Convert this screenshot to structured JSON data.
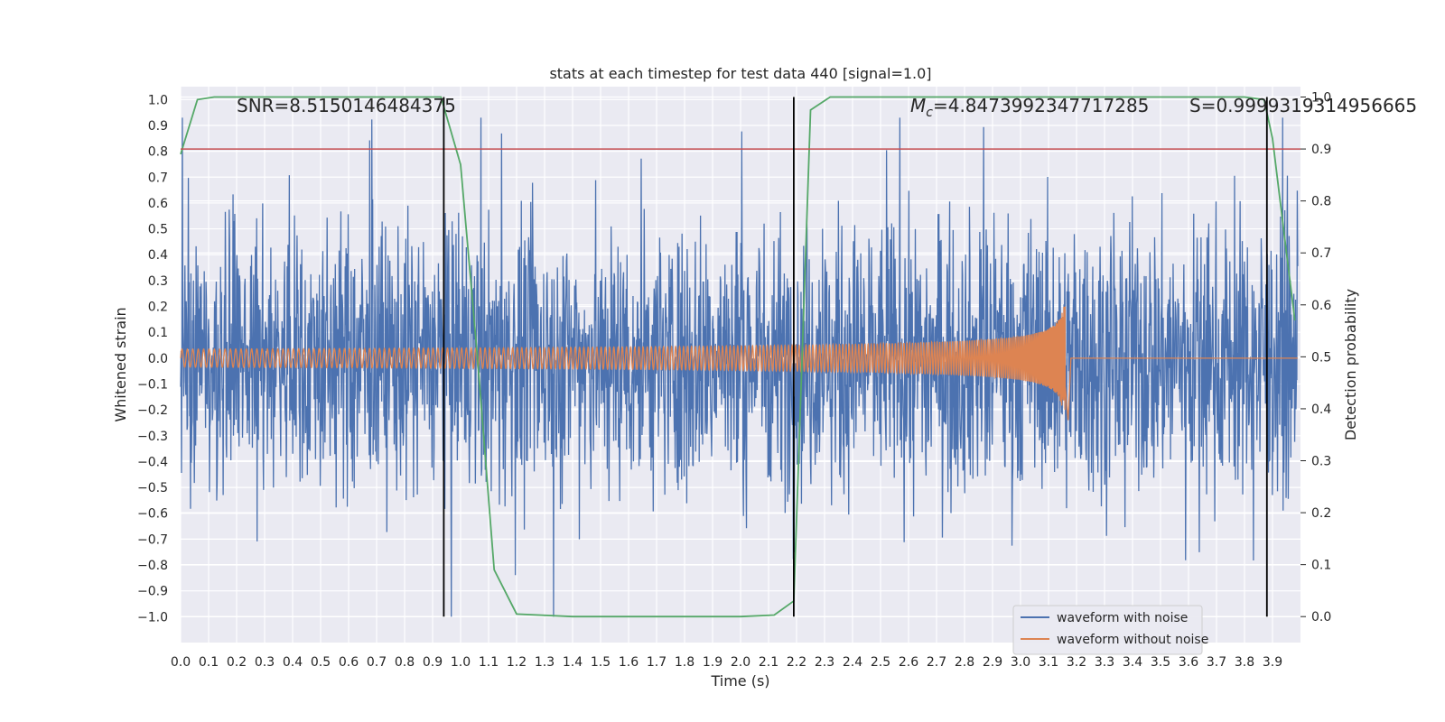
{
  "chart_data": {
    "type": "line",
    "title": "stats at each timestep for test data 440 [signal=1.0]",
    "xlabel": "Time (s)",
    "ylabel": "Whitened strain",
    "ylabel_right": "Detection probability",
    "xlim": [
      0.0,
      4.0
    ],
    "ylim": [
      -1.1,
      1.05
    ],
    "ylim_right": [
      -0.05,
      1.02
    ],
    "x_ticks": [
      "0.0",
      "0.1",
      "0.2",
      "0.3",
      "0.4",
      "0.5",
      "0.6",
      "0.7",
      "0.8",
      "0.9",
      "1.0",
      "1.1",
      "1.2",
      "1.3",
      "1.4",
      "1.5",
      "1.6",
      "1.7",
      "1.8",
      "1.9",
      "2.0",
      "2.1",
      "2.2",
      "2.3",
      "2.4",
      "2.5",
      "2.6",
      "2.7",
      "2.8",
      "2.9",
      "3.0",
      "3.1",
      "3.2",
      "3.3",
      "3.4",
      "3.5",
      "3.6",
      "3.7",
      "3.8",
      "3.9"
    ],
    "y_ticks": [
      "1.0",
      "0.9",
      "0.8",
      "0.7",
      "0.6",
      "0.5",
      "0.4",
      "0.3",
      "0.2",
      "0.1",
      "0.0",
      "−0.1",
      "−0.2",
      "−0.3",
      "−0.4",
      "−0.5",
      "−0.6",
      "−0.7",
      "−0.8",
      "−0.9",
      "−1.0"
    ],
    "y_ticks_right": [
      "1.0",
      "0.9",
      "0.8",
      "0.7",
      "0.6",
      "0.5",
      "0.4",
      "0.3",
      "0.2",
      "0.1",
      "0.0"
    ],
    "grid": true,
    "legend_position": "lower-right",
    "annotations": {
      "snr": "SNR=8.5150146484375",
      "mc_symbol": "M",
      "mc_subscript": "c",
      "mc_value": "=4.8473992347717285",
      "s": "S=0.9999319314956665"
    },
    "series": [
      {
        "name": "waveform with noise",
        "color": "#4c72b0",
        "kind": "noise",
        "amplitude_envelope": [
          -1.0,
          0.93
        ]
      },
      {
        "name": "waveform without noise",
        "color": "#dd8452",
        "kind": "chirp",
        "x_end": 3.16,
        "amplitude_start": 0.035,
        "amplitude_end": 0.2,
        "cycles": 260
      },
      {
        "color": "#55a868",
        "kind": "detection_probability",
        "x": [
          0.0,
          0.06,
          0.12,
          0.2,
          0.3,
          0.5,
          0.7,
          0.93,
          1.0,
          1.06,
          1.12,
          1.2,
          1.4,
          1.6,
          1.8,
          2.0,
          2.12,
          2.19,
          2.25,
          2.32,
          2.4,
          2.6,
          2.8,
          3.0,
          3.2,
          3.4,
          3.6,
          3.8,
          3.87,
          3.9,
          3.95,
          3.98
        ],
        "y": [
          0.89,
          0.995,
          1.0,
          1.0,
          1.0,
          1.0,
          1.0,
          1.0,
          0.87,
          0.5,
          0.09,
          0.005,
          0.0,
          0.0,
          0.0,
          0.0,
          0.003,
          0.03,
          0.975,
          1.0,
          1.0,
          1.0,
          1.0,
          1.0,
          1.0,
          1.0,
          1.0,
          1.0,
          0.995,
          0.92,
          0.7,
          0.57
        ]
      },
      {
        "color": "#c44e52",
        "kind": "threshold",
        "y_right": 0.9
      }
    ],
    "vertical_lines": {
      "color": "#000000",
      "x": [
        0.94,
        2.19,
        3.88
      ]
    }
  }
}
